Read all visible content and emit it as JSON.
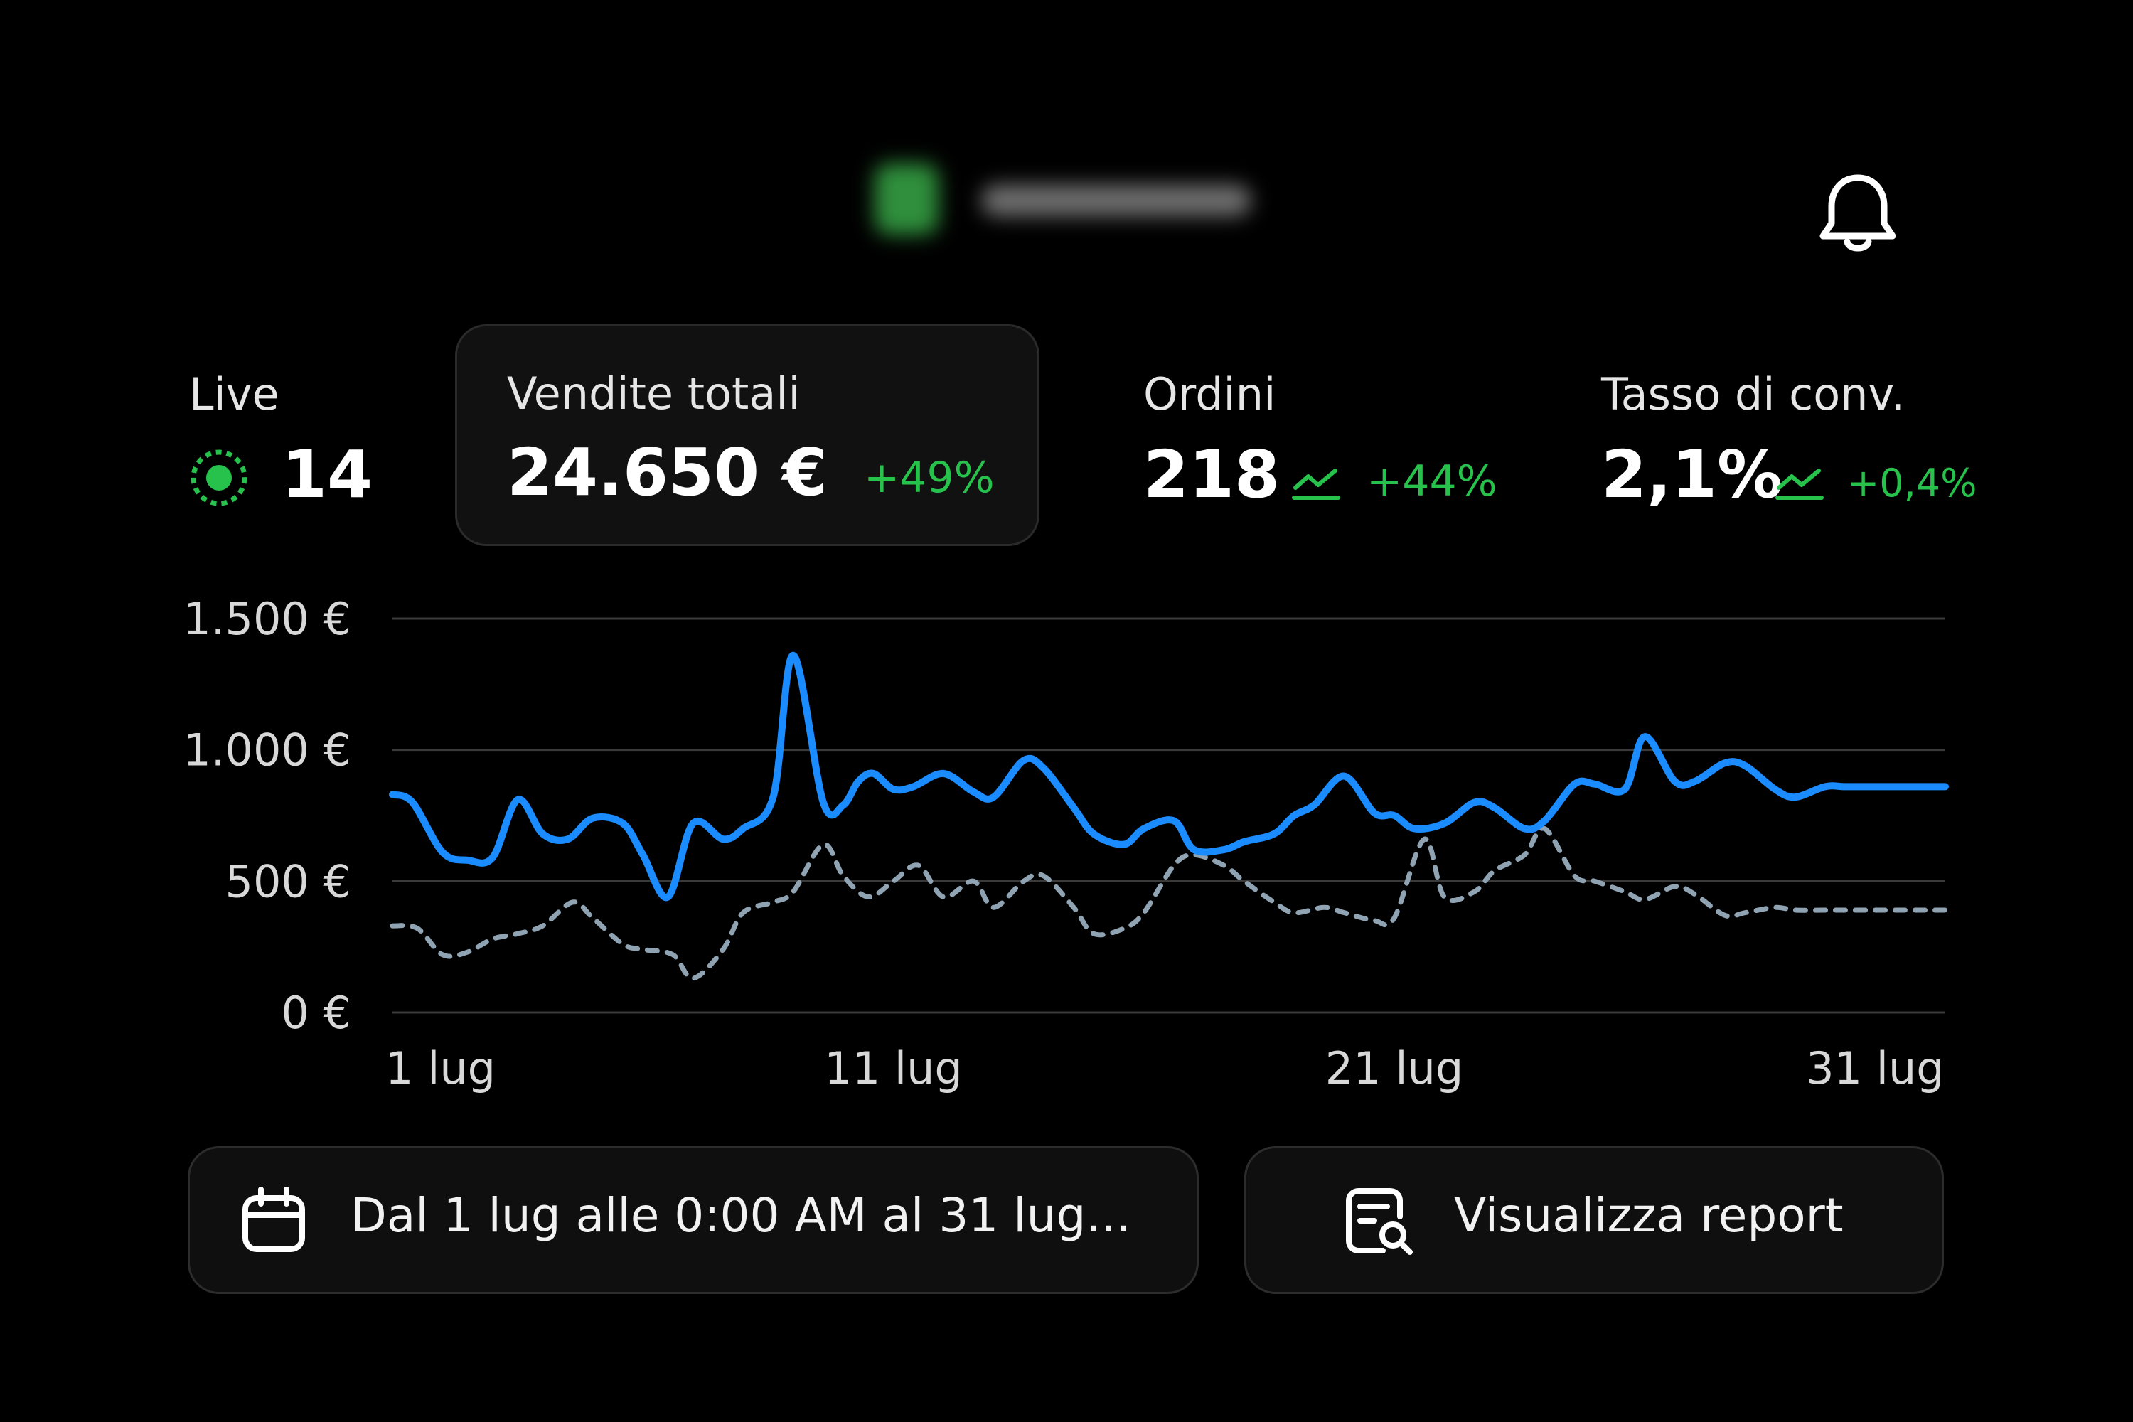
{
  "header": {
    "bell_icon": "bell-icon"
  },
  "metrics": {
    "live": {
      "label": "Live",
      "value": "14",
      "icon": "live-indicator-icon"
    },
    "sales": {
      "label": "Vendite totali",
      "value": "24.650 €",
      "change": "+49%"
    },
    "orders": {
      "label": "Ordini",
      "value": "218",
      "change": "+44%",
      "icon": "trend-up-icon"
    },
    "conversion": {
      "label": "Tasso di conv.",
      "value": "2,1%",
      "change": "+0,4%",
      "icon": "trend-up-icon"
    }
  },
  "colors": {
    "accent_green": "#27c24c",
    "current_series": "#1a8cff",
    "previous_series": "#8fa3b3",
    "grid": "#3a3a3a"
  },
  "chart_data": {
    "type": "line",
    "x_tick_labels": [
      "1 lug",
      "11 lug",
      "21 lug",
      "31 lug"
    ],
    "y_tick_labels": [
      "1.500 €",
      "1.000 €",
      "500 €",
      "0 €"
    ],
    "y_ticks": [
      1500,
      1000,
      500,
      0
    ],
    "ylim": [
      0,
      1500
    ],
    "xlim": [
      1,
      32
    ],
    "grid": true,
    "series": [
      {
        "style": "solid",
        "color": "#1a8cff",
        "x": [
          1,
          1.4,
          2,
          2.5,
          3,
          3.5,
          4,
          4.5,
          5,
          5.6,
          6,
          6.5,
          7,
          7.6,
          8,
          8.6,
          9,
          9.6,
          10,
          10.3,
          10.6,
          11,
          11.4,
          12,
          12.6,
          13,
          13.6,
          14,
          14.6,
          15,
          15.6,
          16,
          16.6,
          17,
          17.6,
          18,
          18.6,
          19,
          19.4,
          20,
          20.6,
          21,
          21.4,
          22,
          22.6,
          23,
          23.6,
          24,
          24.6,
          25,
          25.6,
          26,
          26.6,
          27,
          27.6,
          28,
          28.6,
          29,
          29.6,
          30,
          30.6,
          31,
          31.6,
          32
        ],
        "values": [
          830,
          800,
          610,
          580,
          590,
          810,
          680,
          660,
          740,
          720,
          600,
          440,
          720,
          660,
          700,
          820,
          1360,
          800,
          790,
          880,
          910,
          850,
          860,
          910,
          840,
          820,
          960,
          930,
          780,
          680,
          640,
          700,
          730,
          620,
          620,
          650,
          680,
          750,
          790,
          900,
          760,
          750,
          700,
          720,
          800,
          780,
          700,
          730,
          870,
          870,
          850,
          1050,
          880,
          880,
          950,
          940,
          850,
          820,
          860,
          860,
          860,
          860,
          860,
          860
        ]
      },
      {
        "style": "dashed",
        "color": "#8fa3b3",
        "x": [
          1,
          1.5,
          2,
          2.5,
          3,
          3.5,
          4,
          4.6,
          5,
          5.6,
          6,
          6.6,
          7,
          7.6,
          8,
          8.6,
          9,
          9.6,
          10,
          10.5,
          11,
          11.5,
          12,
          12.6,
          13,
          13.6,
          14,
          14.6,
          15,
          15.6,
          16,
          16.6,
          17,
          17.6,
          18,
          18.6,
          19,
          19.6,
          20,
          20.6,
          21,
          21.6,
          22,
          22.6,
          23,
          23.6,
          24,
          24.6,
          25,
          25.6,
          26,
          26.6,
          27,
          27.6,
          28,
          28.6,
          29,
          29.6,
          30,
          30.6,
          31,
          31.6,
          32
        ],
        "values": [
          330,
          320,
          220,
          230,
          280,
          300,
          330,
          420,
          360,
          260,
          240,
          220,
          130,
          240,
          380,
          420,
          460,
          640,
          520,
          440,
          500,
          560,
          440,
          500,
          400,
          500,
          520,
          400,
          300,
          320,
          380,
          560,
          600,
          560,
          500,
          420,
          380,
          400,
          380,
          350,
          360,
          660,
          440,
          460,
          540,
          600,
          700,
          520,
          500,
          460,
          430,
          480,
          450,
          370,
          380,
          400,
          390,
          390,
          390,
          390,
          390,
          390,
          390
        ]
      }
    ]
  },
  "buttons": {
    "date_range": {
      "label": "Dal 1 lug alle 0:00 AM al 31 lug...",
      "icon": "calendar-icon"
    },
    "report": {
      "label": "Visualizza report",
      "icon": "report-search-icon"
    }
  }
}
